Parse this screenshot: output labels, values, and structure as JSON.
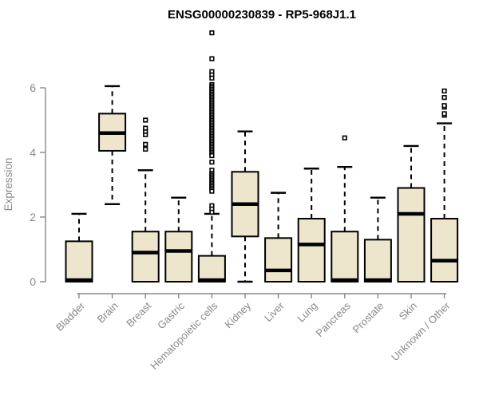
{
  "page": {
    "background": "#ffffff"
  },
  "chart_data": {
    "type": "boxplot",
    "title": "ENSG00000230839 - RP5-968J1.1",
    "ylabel": "Expression",
    "xlabel": "",
    "ylim": [
      0,
      6
    ],
    "yticks": [
      0,
      2,
      4,
      6
    ],
    "grid": false,
    "legend": false,
    "categories": [
      "Bladder",
      "Brain",
      "Breast",
      "Gastric",
      "Hematopoietic cells",
      "Kidney",
      "Liver",
      "Lung",
      "Pancreas",
      "Prostate",
      "Skin",
      "Unknown / Other"
    ],
    "boxes": [
      {
        "category": "Bladder",
        "whisker_low": 0,
        "q1": 0,
        "median": 0.05,
        "q3": 1.25,
        "whisker_high": 2.1,
        "outliers": []
      },
      {
        "category": "Brain",
        "whisker_low": 2.4,
        "q1": 4.05,
        "median": 4.6,
        "q3": 5.2,
        "whisker_high": 6.05,
        "outliers": []
      },
      {
        "category": "Breast",
        "whisker_low": 0,
        "q1": 0,
        "median": 0.9,
        "q3": 1.55,
        "whisker_high": 3.45,
        "outliers": [
          4.1,
          4.25,
          4.55,
          4.65,
          4.75,
          5.0
        ]
      },
      {
        "category": "Gastric",
        "whisker_low": 0,
        "q1": 0,
        "median": 0.95,
        "q3": 1.55,
        "whisker_high": 2.6,
        "outliers": []
      },
      {
        "category": "Hematopoietic cells",
        "whisker_low": 0,
        "q1": 0,
        "median": 0.05,
        "q3": 0.8,
        "whisker_high": 2.1,
        "outliers": [
          7.7,
          6.9,
          6.5,
          6.4,
          6.3,
          6.1,
          6.05,
          6.0,
          5.95,
          5.9,
          5.85,
          5.8,
          5.75,
          5.7,
          5.65,
          5.6,
          5.55,
          5.5,
          5.45,
          5.4,
          5.35,
          5.3,
          5.25,
          5.2,
          5.15,
          5.1,
          5.05,
          5.0,
          4.95,
          4.9,
          4.85,
          4.8,
          4.75,
          4.7,
          4.65,
          4.6,
          4.55,
          4.5,
          4.45,
          4.4,
          4.35,
          4.3,
          4.25,
          4.2,
          4.15,
          4.1,
          4.05,
          4.0,
          3.95,
          3.9,
          3.7,
          3.45,
          3.35,
          3.3,
          3.25,
          3.2,
          3.15,
          3.1,
          3.05,
          3.0,
          2.95,
          2.9,
          2.85,
          2.8,
          2.35,
          2.25,
          2.15
        ]
      },
      {
        "category": "Kidney",
        "whisker_low": 0,
        "q1": 1.4,
        "median": 2.4,
        "q3": 3.4,
        "whisker_high": 4.65,
        "outliers": []
      },
      {
        "category": "Liver",
        "whisker_low": 0,
        "q1": 0,
        "median": 0.35,
        "q3": 1.35,
        "whisker_high": 2.75,
        "outliers": []
      },
      {
        "category": "Lung",
        "whisker_low": 0,
        "q1": 0,
        "median": 1.15,
        "q3": 1.95,
        "whisker_high": 3.5,
        "outliers": []
      },
      {
        "category": "Pancreas",
        "whisker_low": 0,
        "q1": 0,
        "median": 0.05,
        "q3": 1.55,
        "whisker_high": 3.55,
        "outliers": [
          4.45
        ]
      },
      {
        "category": "Prostate",
        "whisker_low": 0,
        "q1": 0,
        "median": 0.05,
        "q3": 1.3,
        "whisker_high": 2.6,
        "outliers": []
      },
      {
        "category": "Skin",
        "whisker_low": 0,
        "q1": 0,
        "median": 2.1,
        "q3": 2.9,
        "whisker_high": 4.2,
        "outliers": []
      },
      {
        "category": "Unknown / Other",
        "whisker_low": 0,
        "q1": 0,
        "median": 0.65,
        "q3": 1.95,
        "whisker_high": 4.9,
        "outliers": [
          5.15,
          5.2,
          5.4,
          5.45,
          5.7,
          5.9
        ]
      }
    ],
    "colors": {
      "box_fill": "#ede6cc",
      "box_border": "#000000",
      "median": "#000000",
      "whisker": "#000000",
      "outlier_stroke": "#000000",
      "outlier_fill": "#ffffff",
      "axis": "#888888",
      "tick_label": "#888888",
      "title": "#000000"
    }
  }
}
